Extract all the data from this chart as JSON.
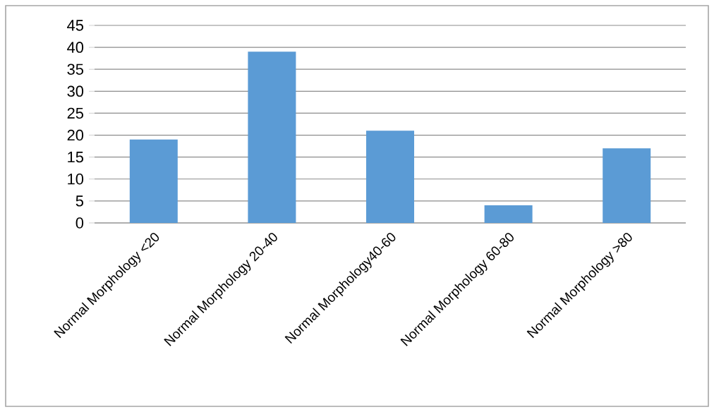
{
  "chart_data": {
    "type": "bar",
    "categories": [
      "Normal Morphology <20",
      "Normal Morphology 20-40",
      "Normal Morphology40-60",
      "Normal Morphology 60-80",
      "Normal Morphology >80"
    ],
    "values": [
      19,
      39,
      21,
      4,
      17
    ],
    "color": "#5b9bd5",
    "ylim": [
      0,
      45
    ],
    "yticks": [
      0,
      5,
      10,
      15,
      20,
      25,
      30,
      35,
      40,
      45
    ],
    "grid": "y"
  }
}
